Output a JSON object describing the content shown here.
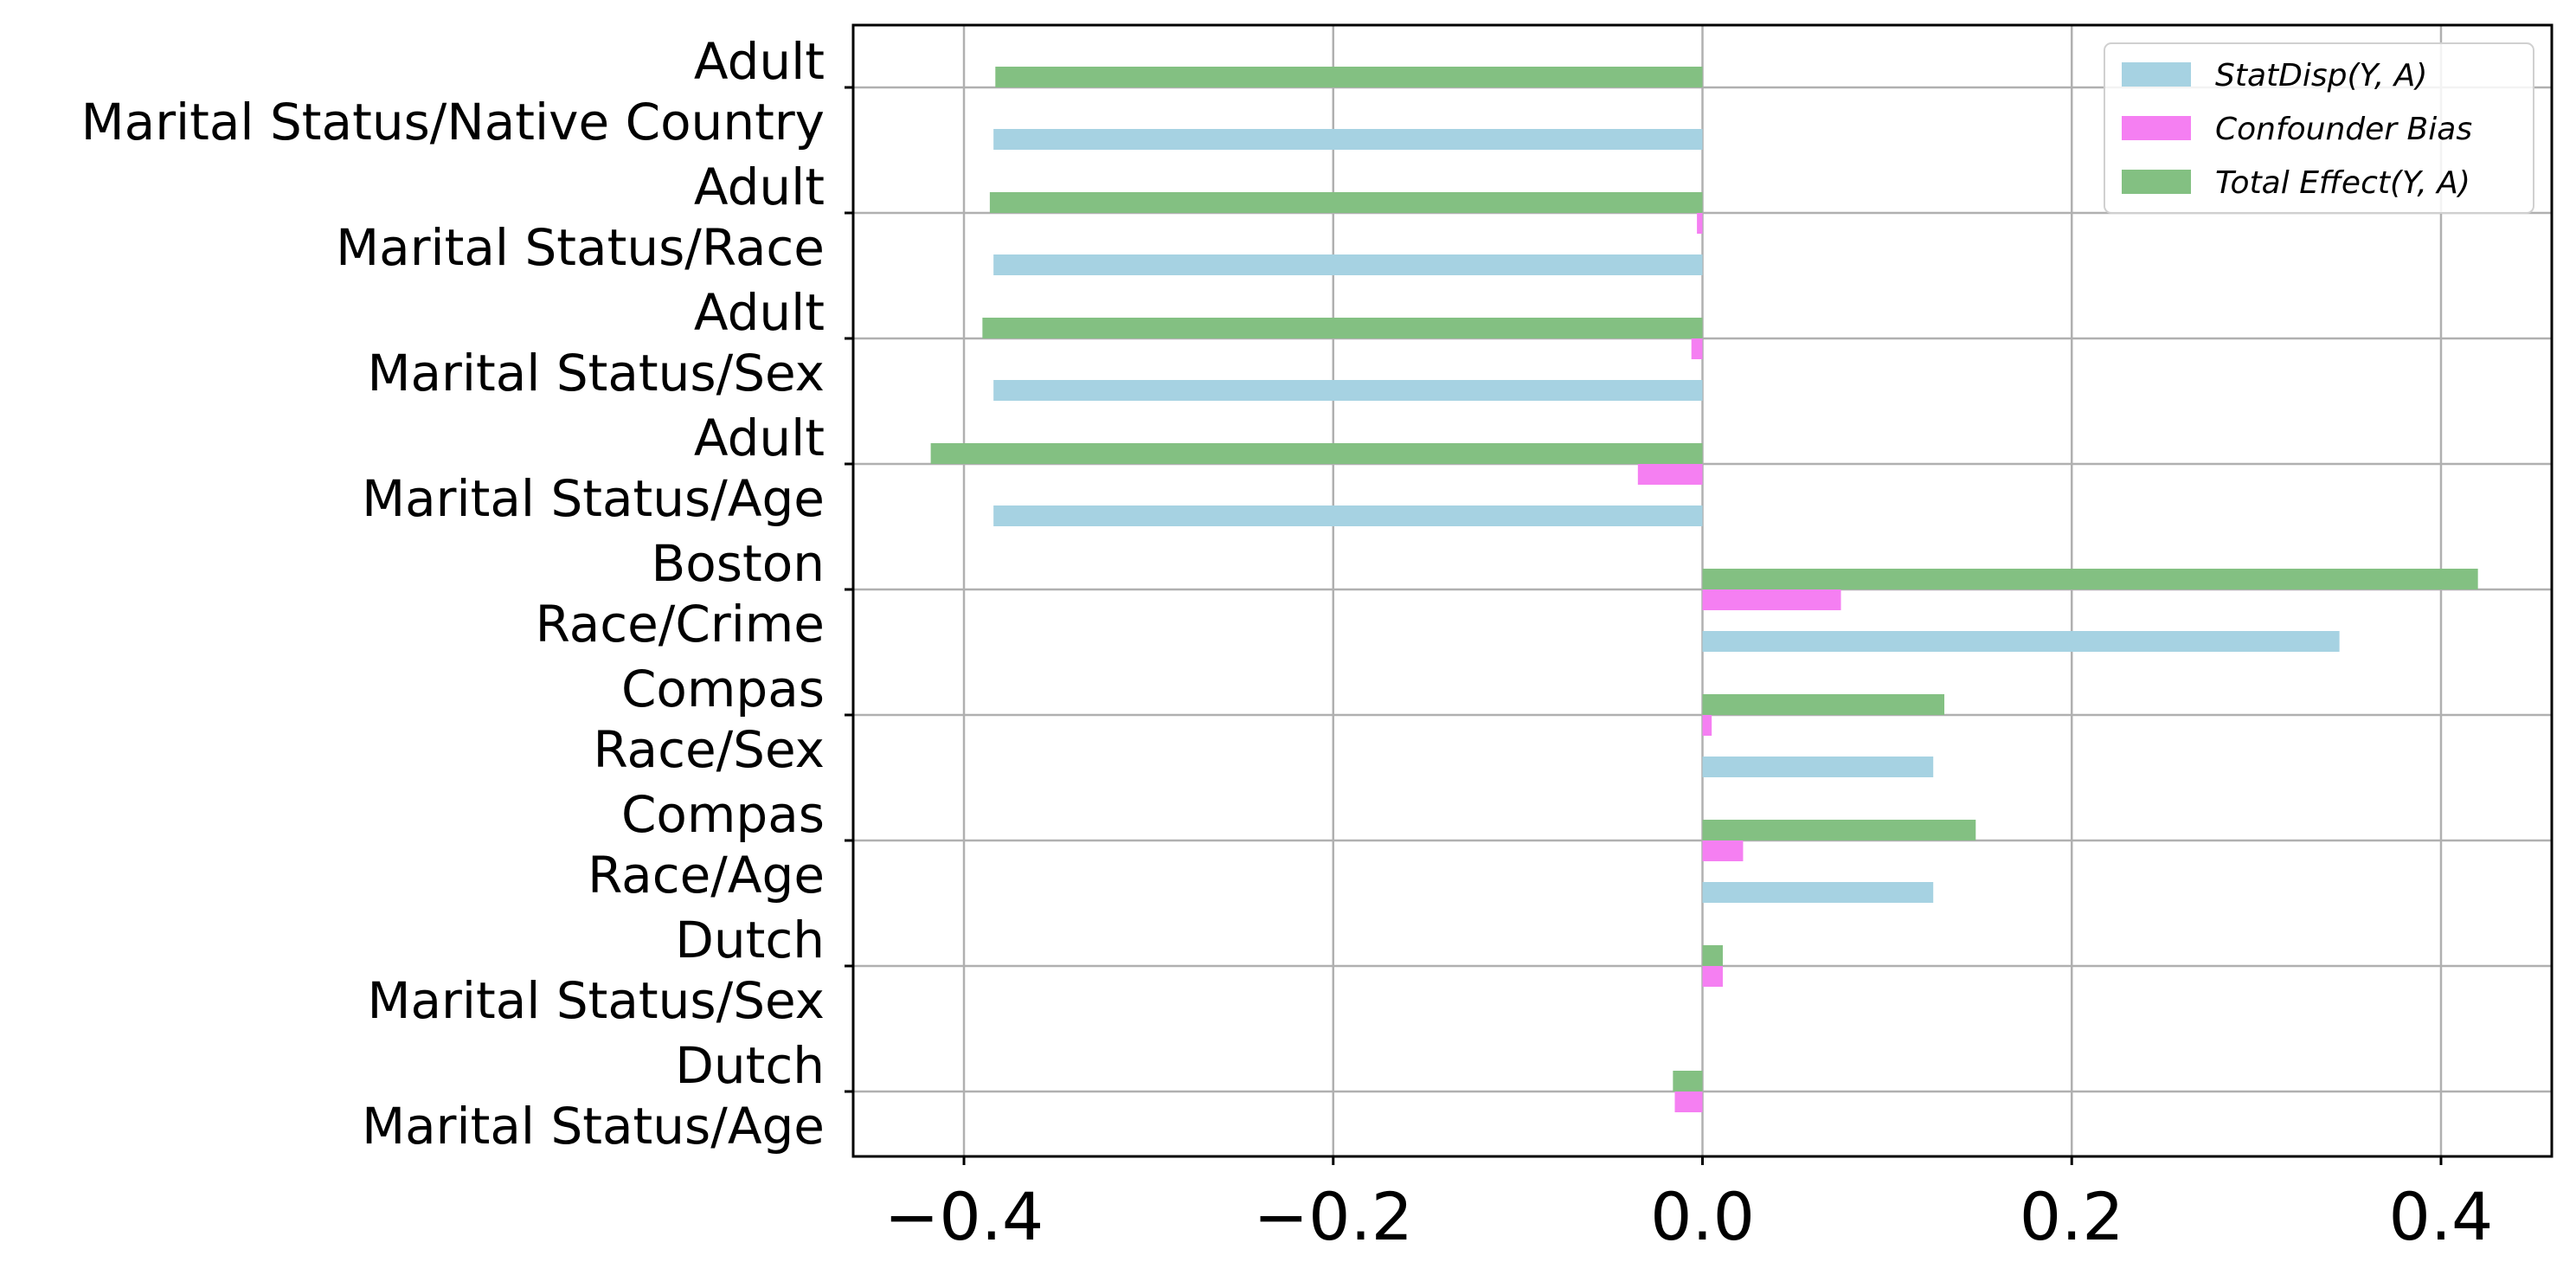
{
  "chart_data": {
    "type": "bar",
    "orientation": "horizontal",
    "title": "",
    "xlabel": "",
    "ylabel": "",
    "xlim": [
      -0.46,
      0.46
    ],
    "xticks": [
      -0.4,
      -0.2,
      0.0,
      0.2,
      0.4
    ],
    "xtick_labels": [
      "−0.4",
      "−0.2",
      "0.0",
      "0.2",
      "0.4"
    ],
    "grid": true,
    "legend_position": "top-right",
    "categories": [
      {
        "dataset": "Adult",
        "attributes": "Marital Status/Native Country"
      },
      {
        "dataset": "Adult",
        "attributes": "Marital Status/Race"
      },
      {
        "dataset": "Adult",
        "attributes": "Marital Status/Sex"
      },
      {
        "dataset": "Adult",
        "attributes": "Marital Status/Age"
      },
      {
        "dataset": "Boston",
        "attributes": "Race/Crime"
      },
      {
        "dataset": "Compas",
        "attributes": "Race/Sex"
      },
      {
        "dataset": "Compas",
        "attributes": "Race/Age"
      },
      {
        "dataset": "Dutch",
        "attributes": "Marital Status/Sex"
      },
      {
        "dataset": "Dutch",
        "attributes": "Marital Status/Age"
      }
    ],
    "series": [
      {
        "name": "StatDisp(Y, A)",
        "color": "#a6d2e2",
        "values": [
          -0.384,
          -0.384,
          -0.384,
          -0.384,
          0.345,
          0.125,
          0.125,
          0.0,
          0.0
        ]
      },
      {
        "name": "Confounder Bias",
        "color": "#f57ff2",
        "values": [
          0.0,
          -0.003,
          -0.006,
          -0.035,
          0.075,
          0.005,
          0.022,
          0.011,
          -0.015
        ]
      },
      {
        "name": "Total Effect(Y, A)",
        "color": "#83c082",
        "values": [
          -0.383,
          -0.386,
          -0.39,
          -0.418,
          0.42,
          0.131,
          0.148,
          0.011,
          -0.016
        ]
      }
    ]
  }
}
